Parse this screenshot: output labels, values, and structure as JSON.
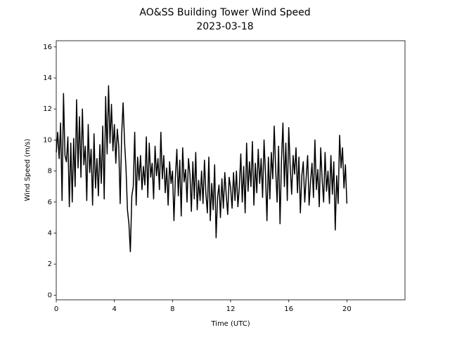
{
  "chart_data": {
    "type": "line",
    "title": "AO&SS Building Tower Wind Speed",
    "subtitle": "2023-03-18",
    "x_label": "Time (UTC)",
    "y_label": "Wind Speed (m/s)",
    "xlim": [
      0,
      24
    ],
    "xticks": [
      0,
      4,
      8,
      12,
      16,
      20
    ],
    "ylim": [
      -0.3,
      16.4
    ],
    "yticks": [
      0,
      2,
      4,
      6,
      8,
      10,
      12,
      14,
      16
    ],
    "grid": false,
    "x": [
      0.0,
      0.1,
      0.2,
      0.3,
      0.4,
      0.5,
      0.6,
      0.7,
      0.8,
      0.9,
      1.0,
      1.1,
      1.2,
      1.3,
      1.4,
      1.5,
      1.6,
      1.7,
      1.8,
      1.9,
      2.0,
      2.1,
      2.2,
      2.3,
      2.4,
      2.5,
      2.6,
      2.7,
      2.8,
      2.9,
      3.0,
      3.1,
      3.2,
      3.3,
      3.4,
      3.5,
      3.6,
      3.7,
      3.8,
      3.9,
      4.0,
      4.1,
      4.2,
      4.3,
      4.4,
      4.5,
      4.6,
      4.7,
      4.8,
      4.9,
      5.0,
      5.1,
      5.2,
      5.3,
      5.4,
      5.5,
      5.6,
      5.7,
      5.8,
      5.9,
      6.0,
      6.1,
      6.2,
      6.3,
      6.4,
      6.5,
      6.6,
      6.7,
      6.8,
      6.9,
      7.0,
      7.1,
      7.2,
      7.3,
      7.4,
      7.5,
      7.6,
      7.7,
      7.8,
      7.9,
      8.0,
      8.1,
      8.2,
      8.3,
      8.4,
      8.5,
      8.6,
      8.7,
      8.8,
      8.9,
      9.0,
      9.1,
      9.2,
      9.3,
      9.4,
      9.5,
      9.6,
      9.7,
      9.8,
      9.9,
      10.0,
      10.1,
      10.2,
      10.3,
      10.4,
      10.5,
      10.6,
      10.7,
      10.8,
      10.9,
      11.0,
      11.1,
      11.2,
      11.3,
      11.4,
      11.5,
      11.6,
      11.7,
      11.8,
      11.9,
      12.0,
      12.1,
      12.2,
      12.3,
      12.4,
      12.5,
      12.6,
      12.7,
      12.8,
      12.9,
      13.0,
      13.1,
      13.2,
      13.3,
      13.4,
      13.5,
      13.6,
      13.7,
      13.8,
      13.9,
      14.0,
      14.1,
      14.2,
      14.3,
      14.4,
      14.5,
      14.6,
      14.7,
      14.8,
      14.9,
      15.0,
      15.1,
      15.2,
      15.3,
      15.4,
      15.5,
      15.6,
      15.7,
      15.8,
      15.9,
      16.0,
      16.1,
      16.2,
      16.3,
      16.4,
      16.5,
      16.6,
      16.7,
      16.8,
      16.9,
      17.0,
      17.1,
      17.2,
      17.3,
      17.4,
      17.5,
      17.6,
      17.7,
      17.8,
      17.9,
      18.0,
      18.1,
      18.2,
      18.3,
      18.4,
      18.5,
      18.6,
      18.7,
      18.8,
      18.9,
      19.0,
      19.1,
      19.2,
      19.3,
      19.4,
      19.5,
      19.6,
      19.7,
      19.8,
      19.9,
      20.0
    ],
    "series": [
      {
        "color": "#000000",
        "values": [
          9.2,
          10.5,
          8.8,
          11.1,
          6.1,
          13.0,
          9.0,
          8.6,
          10.2,
          5.7,
          9.8,
          6.0,
          10.1,
          7.0,
          12.6,
          8.2,
          11.5,
          7.6,
          12.0,
          8.4,
          9.6,
          6.1,
          11.0,
          7.9,
          9.4,
          5.8,
          10.4,
          6.9,
          8.8,
          6.4,
          9.7,
          7.2,
          10.9,
          6.2,
          12.8,
          9.1,
          13.5,
          9.8,
          12.3,
          9.3,
          11.0,
          8.5,
          10.7,
          9.6,
          5.9,
          10.3,
          12.4,
          9.9,
          8.2,
          5.5,
          4.6,
          2.8,
          6.4,
          7.0,
          10.5,
          5.8,
          8.9,
          7.4,
          9.0,
          6.8,
          8.3,
          7.1,
          10.2,
          6.3,
          9.8,
          7.6,
          8.5,
          6.2,
          9.6,
          7.7,
          8.8,
          6.8,
          10.5,
          7.5,
          9.0,
          6.6,
          8.2,
          5.8,
          8.6,
          7.2,
          8.0,
          4.8,
          7.6,
          9.4,
          6.4,
          8.7,
          5.1,
          9.5,
          7.3,
          8.1,
          6.0,
          8.8,
          7.8,
          5.4,
          8.6,
          6.2,
          9.2,
          5.5,
          7.4,
          6.1,
          8.0,
          5.9,
          8.7,
          6.5,
          5.3,
          8.9,
          4.8,
          7.2,
          5.5,
          8.4,
          3.7,
          6.3,
          7.1,
          5.0,
          7.5,
          5.6,
          7.9,
          6.4,
          5.2,
          7.6,
          6.9,
          5.6,
          7.9,
          6.1,
          8.0,
          5.7,
          7.0,
          9.1,
          6.0,
          8.3,
          5.3,
          9.8,
          6.7,
          8.6,
          7.0,
          9.9,
          5.8,
          8.5,
          6.6,
          9.4,
          7.2,
          8.8,
          6.3,
          10.0,
          7.8,
          4.8,
          8.9,
          6.2,
          9.2,
          7.5,
          10.9,
          8.1,
          6.0,
          9.6,
          4.6,
          8.7,
          11.1,
          7.0,
          9.8,
          6.1,
          10.8,
          8.3,
          6.5,
          9.0,
          7.8,
          9.5,
          6.6,
          8.9,
          5.3,
          7.7,
          8.6,
          6.0,
          7.6,
          9.0,
          5.8,
          7.3,
          8.5,
          6.3,
          10.0,
          6.8,
          8.1,
          5.7,
          9.5,
          7.4,
          6.0,
          9.2,
          6.7,
          8.0,
          5.9,
          9.0,
          6.5,
          8.6,
          4.2,
          7.7,
          5.9,
          10.3,
          8.2,
          9.5,
          6.9,
          8.4,
          5.9
        ]
      }
    ]
  }
}
